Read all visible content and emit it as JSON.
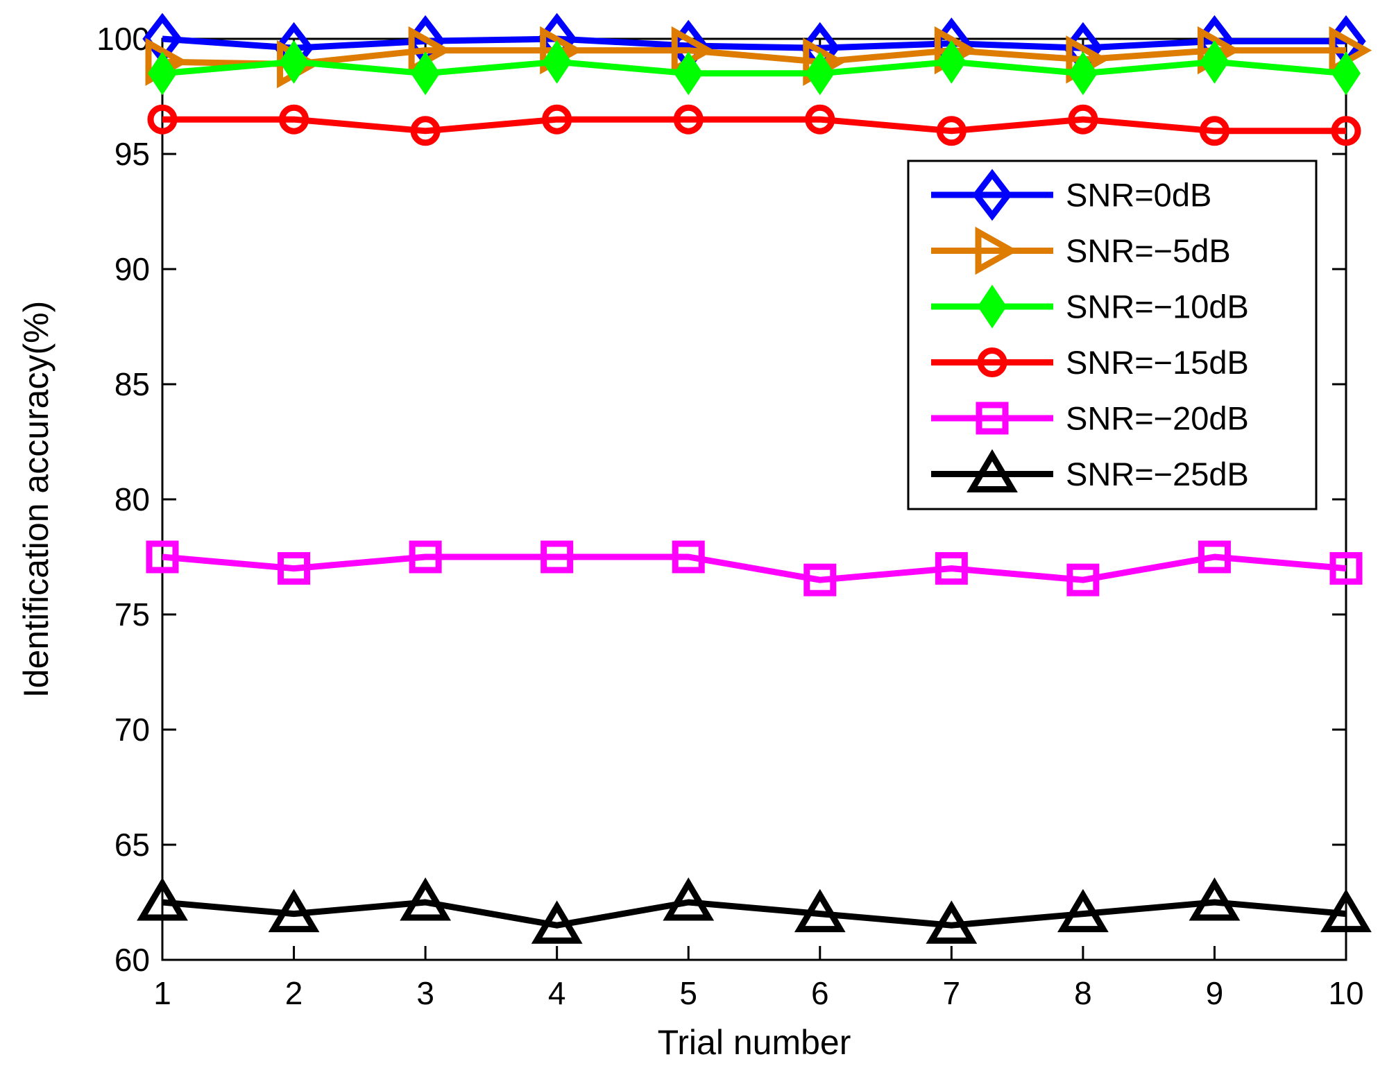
{
  "chart_data": {
    "type": "line",
    "title": "",
    "xlabel": "Trial number",
    "ylabel": "Identification accuracy(%)",
    "x": [
      1,
      2,
      3,
      4,
      5,
      6,
      7,
      8,
      9,
      10
    ],
    "xticks": [
      1,
      2,
      3,
      4,
      5,
      6,
      7,
      8,
      9,
      10
    ],
    "yticks": [
      60,
      65,
      70,
      75,
      80,
      85,
      90,
      95,
      100
    ],
    "xlim": [
      1,
      10
    ],
    "ylim": [
      60,
      100
    ],
    "grid": false,
    "legend_position": "upper-right",
    "axis_color": "#000000",
    "background_color": "#ffffff",
    "series": [
      {
        "name": "SNR=0dB",
        "color": "#0000ff",
        "marker": "diamond-open",
        "values": [
          100,
          99.6,
          99.9,
          100,
          99.7,
          99.6,
          99.8,
          99.6,
          99.9,
          99.9
        ]
      },
      {
        "name": "SNR=−5dB",
        "color": "#dd7c00",
        "marker": "triangle-right-open",
        "values": [
          99.0,
          98.9,
          99.5,
          99.5,
          99.5,
          99.0,
          99.5,
          99.1,
          99.5,
          99.5
        ]
      },
      {
        "name": "SNR=−10dB",
        "color": "#00ff00",
        "marker": "diamond-filled",
        "values": [
          98.5,
          99.0,
          98.5,
          99.0,
          98.5,
          98.5,
          99.0,
          98.5,
          99.0,
          98.5
        ]
      },
      {
        "name": "SNR=−15dB",
        "color": "#ff0000",
        "marker": "circle-open",
        "values": [
          96.5,
          96.5,
          96.0,
          96.5,
          96.5,
          96.5,
          96.0,
          96.5,
          96.0,
          96.0
        ]
      },
      {
        "name": "SNR=−20dB",
        "color": "#ff00ff",
        "marker": "square-open",
        "values": [
          77.5,
          77.0,
          77.5,
          77.5,
          77.5,
          76.5,
          77.0,
          76.5,
          77.5,
          77.0
        ]
      },
      {
        "name": "SNR=−25dB",
        "color": "#000000",
        "marker": "triangle-up-open",
        "values": [
          62.5,
          62.0,
          62.5,
          61.5,
          62.5,
          62.0,
          61.5,
          62.0,
          62.5,
          62.0
        ]
      }
    ]
  }
}
